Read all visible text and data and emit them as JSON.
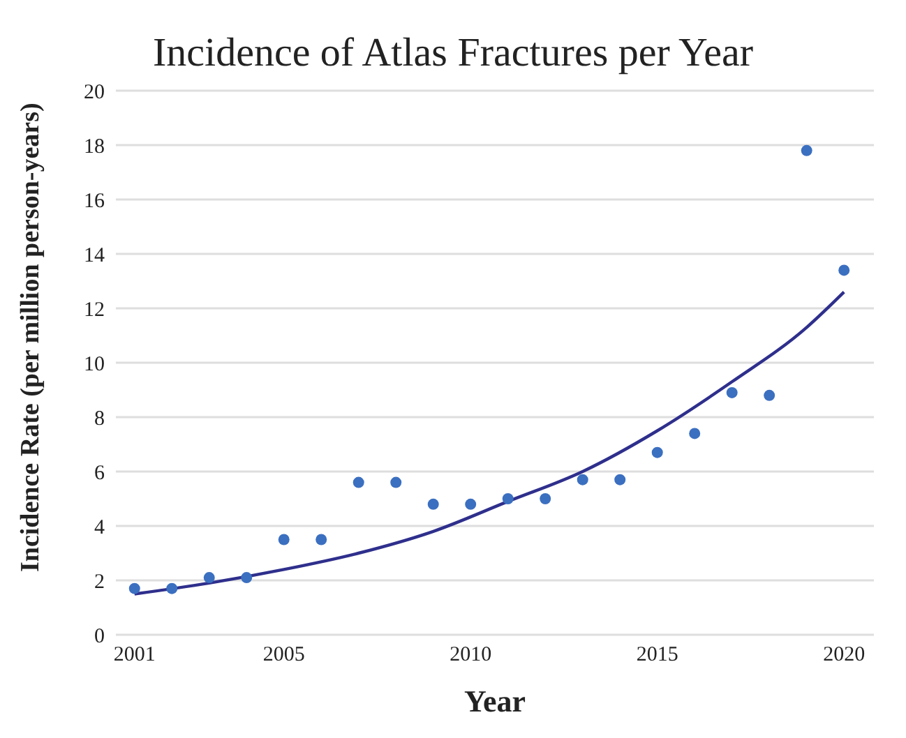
{
  "chart_data": {
    "type": "scatter",
    "title": "Incidence of Atlas Fractures per Year",
    "xlabel": "Year",
    "ylabel": "Incidence Rate (per million person-years)",
    "x": [
      2001,
      2002,
      2003,
      2004,
      2005,
      2006,
      2007,
      2008,
      2009,
      2010,
      2011,
      2012,
      2013,
      2014,
      2015,
      2016,
      2017,
      2018,
      2019,
      2020
    ],
    "series": [
      {
        "color": "#3b6fc0",
        "marker": "circle",
        "values": [
          1.7,
          1.7,
          2.1,
          2.1,
          3.5,
          3.5,
          5.6,
          5.6,
          4.8,
          4.8,
          5.0,
          5.0,
          5.7,
          5.7,
          6.7,
          7.4,
          8.9,
          8.8,
          17.8,
          13.4
        ]
      },
      {
        "type": "line",
        "color": "#2e2f8c",
        "marker": "none",
        "line_style": "solid",
        "x": [
          2001,
          2003,
          2005,
          2007,
          2009,
          2011,
          2013,
          2015,
          2017,
          2019,
          2020
        ],
        "values": [
          1.5,
          1.9,
          2.4,
          3.0,
          3.8,
          4.9,
          6.0,
          7.5,
          9.3,
          11.3,
          12.6
        ]
      }
    ],
    "xlim": [
      2000.5,
      2020.8
    ],
    "xticks": [
      2001,
      2005,
      2010,
      2015,
      2020
    ],
    "ylim": [
      0,
      20
    ],
    "yticks": [
      0,
      2,
      4,
      6,
      8,
      10,
      12,
      14,
      16,
      18,
      20
    ],
    "grid": "y",
    "legend": false
  }
}
